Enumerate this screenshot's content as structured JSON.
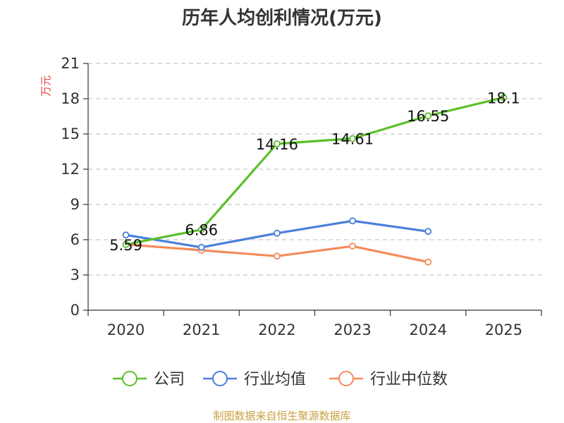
{
  "chart_data": {
    "type": "line",
    "title": "历年人均创利情况(万元)",
    "ylabel": "万元",
    "xlabel": "",
    "ylim": [
      0,
      21
    ],
    "yticks": [
      0,
      3,
      6,
      9,
      12,
      15,
      18,
      21
    ],
    "categories": [
      "2020",
      "2021",
      "2022",
      "2023",
      "2024",
      "2025"
    ],
    "grid": true,
    "legend_position": "bottom",
    "series": [
      {
        "name": "公司",
        "color": "#5cbf2a",
        "values": [
          5.59,
          6.86,
          14.16,
          14.61,
          16.55,
          18.1
        ],
        "labels": [
          "5.59",
          "6.86",
          "14.16",
          "14.61",
          "16.55",
          "18.1"
        ]
      },
      {
        "name": "行业均值",
        "color": "#4a7fdc",
        "values": [
          6.4,
          5.35,
          6.55,
          7.6,
          6.7,
          null
        ]
      },
      {
        "name": "行业中位数",
        "color": "#f58a5a",
        "values": [
          5.6,
          5.1,
          4.6,
          5.45,
          4.1,
          null
        ]
      }
    ]
  },
  "footer": "制图数据来自恒生聚源数据库"
}
